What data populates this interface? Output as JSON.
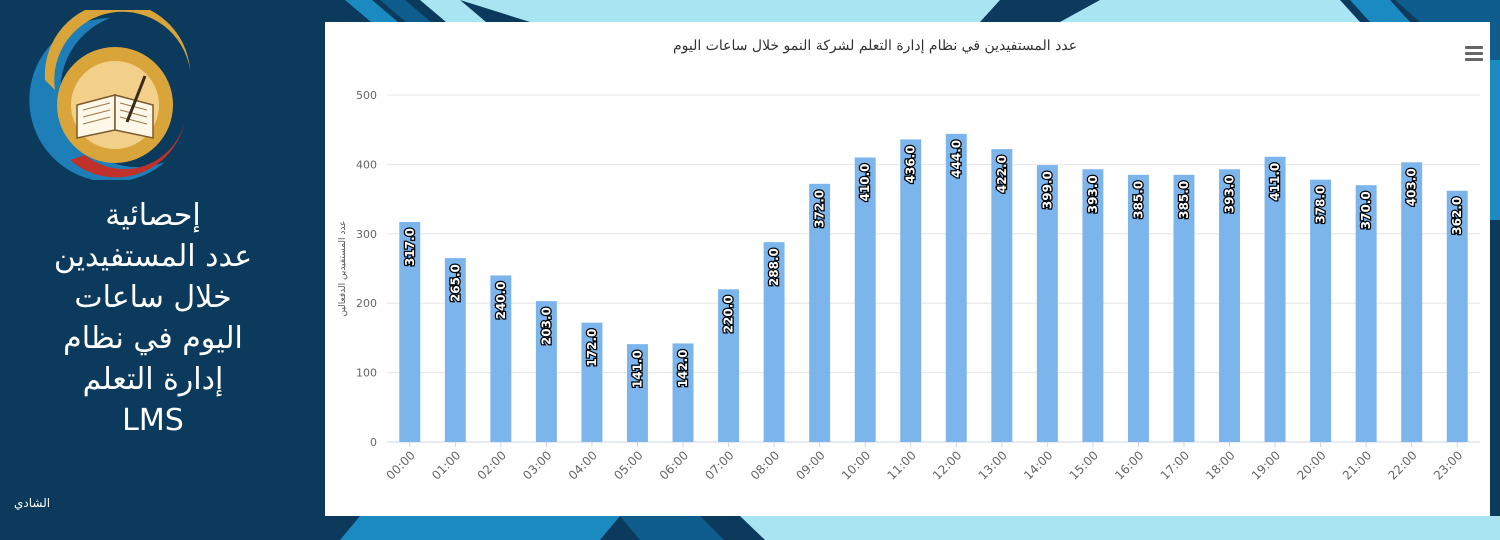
{
  "side": {
    "title_lines": [
      "إحصائية",
      "عدد المستفيدين",
      "خلال ساعات",
      "اليوم في نظام",
      "إدارة التعلم",
      "LMS"
    ],
    "author": "الشادي"
  },
  "colors": {
    "background": "#0b3a5c",
    "bar": "#7cb5ec",
    "accent_light": "#a8e4f2",
    "accent_mid": "#1b8ac0",
    "logo_gold": "#d9a53a",
    "logo_red": "#c0312b",
    "logo_blue": "#1e7fb8"
  },
  "icons": {
    "logo": "open-book-icon",
    "menu": "hamburger-menu-icon"
  },
  "chart_data": {
    "type": "bar",
    "title": "عدد المستفيدين في نظام إدارة التعلم لشركة النمو خلال ساعات اليوم",
    "ylabel": "عدد المستفيدين الدفعالين",
    "xlabel": "",
    "ylim": [
      0,
      500
    ],
    "yticks": [
      0,
      100,
      200,
      300,
      400,
      500
    ],
    "grid": true,
    "categories": [
      "00:00",
      "01:00",
      "02:00",
      "03:00",
      "04:00",
      "05:00",
      "06:00",
      "07:00",
      "08:00",
      "09:00",
      "10:00",
      "11:00",
      "12:00",
      "13:00",
      "14:00",
      "15:00",
      "16:00",
      "17:00",
      "18:00",
      "19:00",
      "20:00",
      "21:00",
      "22:00",
      "23:00"
    ],
    "values": [
      317,
      265,
      240,
      203,
      172,
      141,
      142,
      220,
      288,
      372,
      410,
      436,
      444,
      422,
      399,
      393,
      385,
      385,
      393,
      411,
      378,
      370,
      403,
      362
    ],
    "data_labels": [
      "317.0",
      "265.0",
      "240.0",
      "203.0",
      "172.0",
      "141.0",
      "142.0",
      "220.0",
      "288.0",
      "372.0",
      "410.0",
      "436.0",
      "444.0",
      "422.0",
      "399.0",
      "393.0",
      "385.0",
      "385.0",
      "393.0",
      "411.0",
      "378.0",
      "370.0",
      "403.0",
      "362.0"
    ]
  }
}
